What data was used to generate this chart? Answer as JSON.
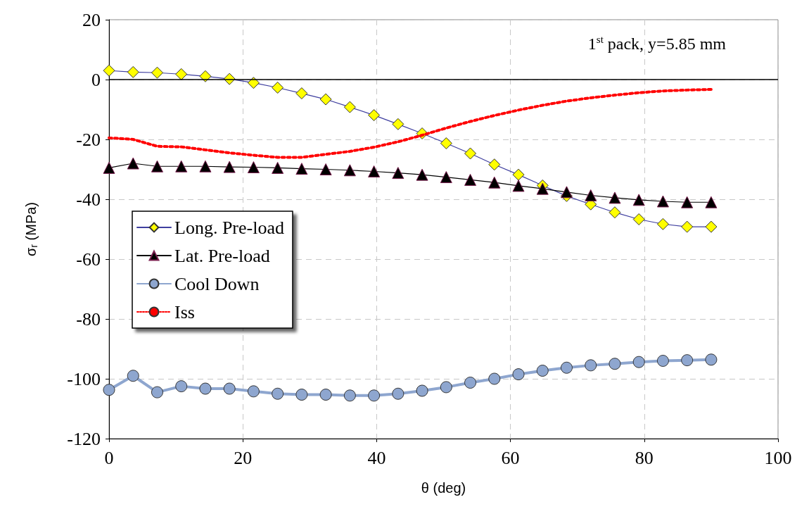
{
  "chart_data": {
    "type": "line",
    "xlabel": "θ (deg)",
    "ylabel": "σ$_{r}$ (MPa)",
    "annotations": [
      "1$^{st}$ pack, y=5.85 mm"
    ],
    "x": [
      0,
      3.6,
      7.2,
      10.8,
      14.4,
      18,
      21.6,
      25.2,
      28.8,
      32.4,
      36,
      39.6,
      43.2,
      46.8,
      50.4,
      54,
      57.6,
      61.2,
      64.8,
      68.4,
      72,
      75.6,
      79.2,
      82.8,
      86.4,
      90
    ],
    "series": [
      {
        "name": "Long. Pre-load",
        "color": "#3f3f9f",
        "marker": "diamond",
        "values": [
          3,
          2.5,
          2.3,
          1.8,
          1.1,
          0.2,
          -1.1,
          -2.7,
          -4.6,
          -6.6,
          -9.2,
          -11.9,
          -14.9,
          -18,
          -21.3,
          -24.7,
          -28.4,
          -31.8,
          -35.4,
          -38.9,
          -41.7,
          -44.4,
          -46.7,
          -48.3,
          -49.2,
          -49.2
        ]
      },
      {
        "name": "Lat. Pre-load",
        "color": "#000000",
        "marker": "triangle",
        "values": [
          -29.5,
          -28,
          -29,
          -29,
          -29,
          -29.2,
          -29.3,
          -29.5,
          -29.8,
          -30,
          -30.3,
          -30.7,
          -31.2,
          -31.8,
          -32.6,
          -33.5,
          -34.4,
          -35.5,
          -36.5,
          -37.6,
          -38.7,
          -39.5,
          -40.2,
          -40.7,
          -41,
          -41
        ]
      },
      {
        "name": "Cool Down",
        "color": "#8ea6cf",
        "marker": "circle",
        "values": [
          -103.7,
          -99,
          -104.5,
          -102.5,
          -103.3,
          -103.3,
          -104.2,
          -105,
          -105.3,
          -105.3,
          -105.6,
          -105.6,
          -105,
          -104,
          -102.8,
          -101.3,
          -100,
          -98.5,
          -97.3,
          -96.3,
          -95.5,
          -95,
          -94.4,
          -94,
          -93.8,
          -93.6
        ]
      },
      {
        "name": "Iss",
        "color": "#ff0000",
        "marker": "none",
        "line_style": "dotted",
        "values": [
          -19.5,
          -20,
          -22.3,
          -22.5,
          -23.5,
          -24.5,
          -25.3,
          -26,
          -26,
          -25,
          -24,
          -22.6,
          -20.8,
          -18.6,
          -16.2,
          -14,
          -12,
          -10.2,
          -8.6,
          -7.2,
          -6.1,
          -5.2,
          -4.4,
          -3.8,
          -3.5,
          -3.3
        ]
      }
    ],
    "xlim": [
      0,
      100
    ],
    "xticks": [
      0,
      20,
      40,
      60,
      80,
      100
    ],
    "ylim": [
      -120,
      20
    ],
    "yticks": [
      -120,
      -100,
      -80,
      -60,
      -40,
      -20,
      0,
      20
    ],
    "ref_lines": [
      {
        "axis": "y",
        "value": 0,
        "color": "#000000"
      }
    ],
    "grid": true,
    "legend": "left"
  }
}
